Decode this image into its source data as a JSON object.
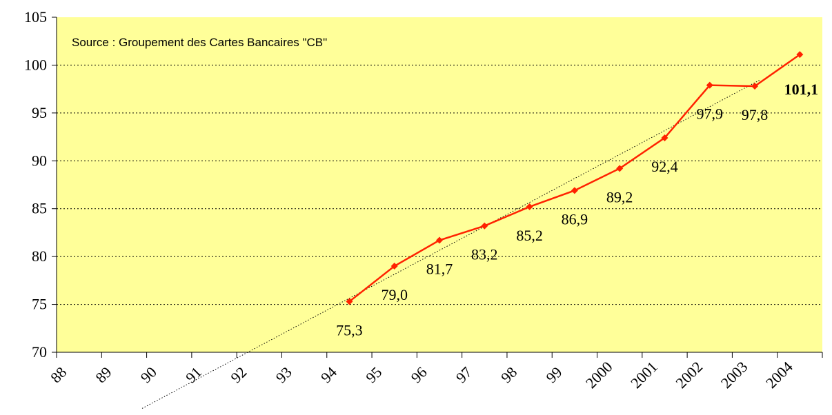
{
  "chart_data": {
    "type": "line",
    "annotation": "Source : Groupement des Cartes Bancaires \"CB\"",
    "categories": [
      "88",
      "89",
      "90",
      "91",
      "92",
      "93",
      "94",
      "95",
      "96",
      "97",
      "98",
      "99",
      "2000",
      "2001",
      "2002",
      "2003",
      "2004"
    ],
    "series": [
      {
        "color": "#ff2200",
        "values": [
          null,
          null,
          null,
          null,
          null,
          null,
          75.3,
          79.0,
          81.7,
          83.2,
          85.2,
          86.9,
          89.2,
          92.4,
          97.9,
          97.8,
          101.1
        ],
        "value_labels": [
          null,
          null,
          null,
          null,
          null,
          null,
          "75,3",
          "79,0",
          "81,7",
          "83,2",
          "85,2",
          "86,9",
          "89,2",
          "92,4",
          "97,9",
          "97,8",
          "101,1"
        ]
      }
    ],
    "ylim": [
      70,
      105
    ],
    "yticks": [
      70,
      75,
      80,
      85,
      90,
      95,
      100,
      105
    ],
    "grid": true,
    "trendline": true,
    "background": "#ffff99"
  }
}
